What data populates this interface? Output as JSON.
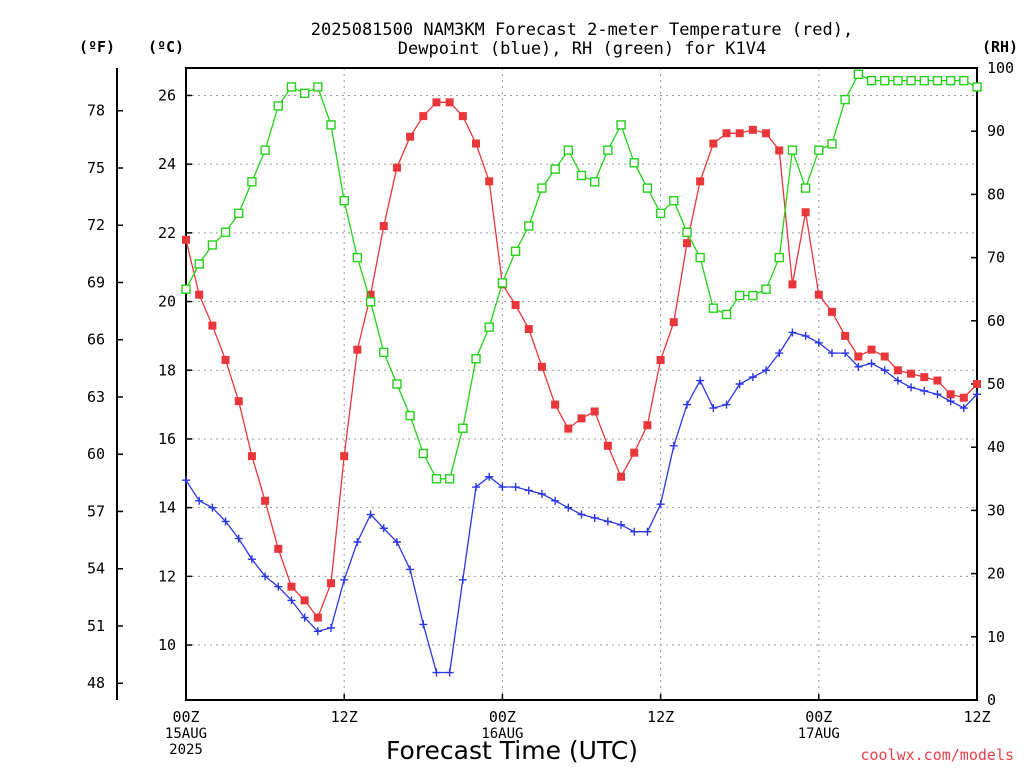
{
  "chart_data": {
    "type": "line",
    "title_lines": [
      "2025081500 NAM3KM Forecast 2-meter Temperature (red),",
      "Dewpoint (blue), RH (green) for K1V4"
    ],
    "xlabel": "Forecast Time (UTC)",
    "credit": "coolwx.com/models",
    "left_axis_c": {
      "unit": "(ºC)",
      "ylim": [
        8.4,
        26.8
      ],
      "ticks": [
        10,
        12,
        14,
        16,
        18,
        20,
        22,
        24,
        26
      ]
    },
    "left_axis_f": {
      "unit": "(ºF)",
      "ticks": [
        48,
        51,
        54,
        57,
        60,
        63,
        66,
        69,
        72,
        75,
        78
      ]
    },
    "right_axis_rh": {
      "unit": "(RH)",
      "ylim": [
        0,
        100
      ],
      "ticks": [
        0,
        10,
        20,
        30,
        40,
        50,
        60,
        70,
        80,
        90,
        100
      ]
    },
    "x_range_hours": [
      0,
      60
    ],
    "x_ticks": [
      {
        "hour": 0,
        "lines": [
          "00Z",
          "15AUG",
          "2025"
        ]
      },
      {
        "hour": 12,
        "lines": [
          "12Z"
        ]
      },
      {
        "hour": 24,
        "lines": [
          "00Z",
          "16AUG"
        ]
      },
      {
        "hour": 36,
        "lines": [
          "12Z"
        ]
      },
      {
        "hour": 48,
        "lines": [
          "00Z",
          "17AUG"
        ]
      },
      {
        "hour": 60,
        "lines": [
          "12Z"
        ]
      }
    ],
    "grid": true,
    "series": [
      {
        "key": "temperature",
        "color": "#e8363a",
        "marker": "filled-square",
        "axis": "celsius",
        "values": [
          21.8,
          20.2,
          19.3,
          18.3,
          17.1,
          15.5,
          14.2,
          12.8,
          11.7,
          11.3,
          10.8,
          11.8,
          15.5,
          18.6,
          20.2,
          22.2,
          23.9,
          24.8,
          25.4,
          25.8,
          25.8,
          25.4,
          24.6,
          23.5,
          20.5,
          19.9,
          19.2,
          18.1,
          17.0,
          16.3,
          16.6,
          16.8,
          15.8,
          14.9,
          15.6,
          16.4,
          18.3,
          19.4,
          21.7,
          23.5,
          24.6,
          24.9,
          24.9,
          25.0,
          24.9,
          24.4,
          20.5,
          22.6,
          20.2,
          19.7,
          19.0,
          18.4,
          18.6,
          18.4,
          18.0,
          17.9,
          17.8,
          17.7,
          17.3,
          17.2,
          17.6
        ]
      },
      {
        "key": "dewpoint",
        "color": "#2b36e3",
        "marker": "plus",
        "axis": "celsius",
        "values": [
          14.8,
          14.2,
          14.0,
          13.6,
          13.1,
          12.5,
          12.0,
          11.7,
          11.3,
          10.8,
          10.4,
          10.5,
          11.9,
          13.0,
          13.8,
          13.4,
          13.0,
          12.2,
          10.6,
          9.2,
          9.2,
          11.9,
          14.6,
          14.9,
          14.6,
          14.6,
          14.5,
          14.4,
          14.2,
          14.0,
          13.8,
          13.7,
          13.6,
          13.5,
          13.3,
          13.3,
          14.1,
          15.8,
          17.0,
          17.7,
          16.9,
          17.0,
          17.6,
          17.8,
          18.0,
          18.5,
          19.1,
          19.0,
          18.8,
          18.5,
          18.5,
          18.1,
          18.2,
          18.0,
          17.7,
          17.5,
          17.4,
          17.3,
          17.1,
          16.9,
          17.3
        ]
      },
      {
        "key": "rh",
        "color": "#24d11a",
        "marker": "open-square",
        "axis": "rh",
        "values": [
          65,
          69,
          72,
          74,
          77,
          82,
          87,
          94,
          97,
          96,
          97,
          91,
          79,
          70,
          63,
          55,
          50,
          45,
          39,
          35,
          35,
          43,
          54,
          59,
          66,
          71,
          75,
          81,
          84,
          87,
          83,
          82,
          87,
          91,
          85,
          81,
          77,
          79,
          74,
          70,
          62,
          61,
          64,
          64,
          65,
          70,
          87,
          81,
          87,
          88,
          95,
          99,
          98,
          98,
          98,
          98,
          98,
          98,
          98,
          98,
          97
        ]
      }
    ]
  }
}
